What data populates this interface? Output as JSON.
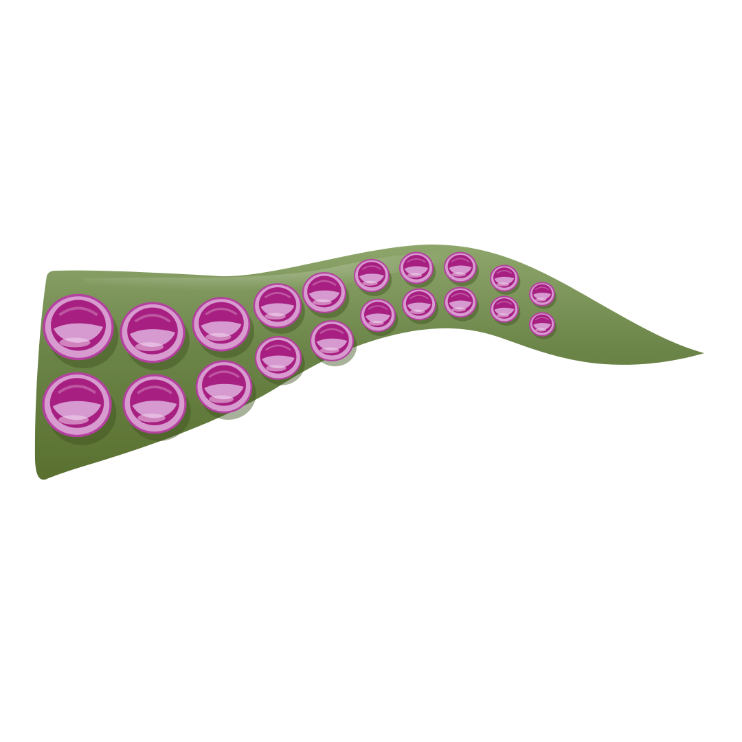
{
  "image": {
    "subject": "tentacle-with-suckers",
    "colors": {
      "background": "#ffffff",
      "tentacle_base": "#6b8448",
      "tentacle_dark": "#59702f",
      "tentacle_light": "#8ea66c",
      "sucker_rim": "#d79bd0",
      "sucker_rim_edge": "#b4409f",
      "sucker_cup": "#a81f82",
      "sucker_lower": "#d69ad0",
      "sucker_highlight": "#f2d6ee"
    }
  }
}
